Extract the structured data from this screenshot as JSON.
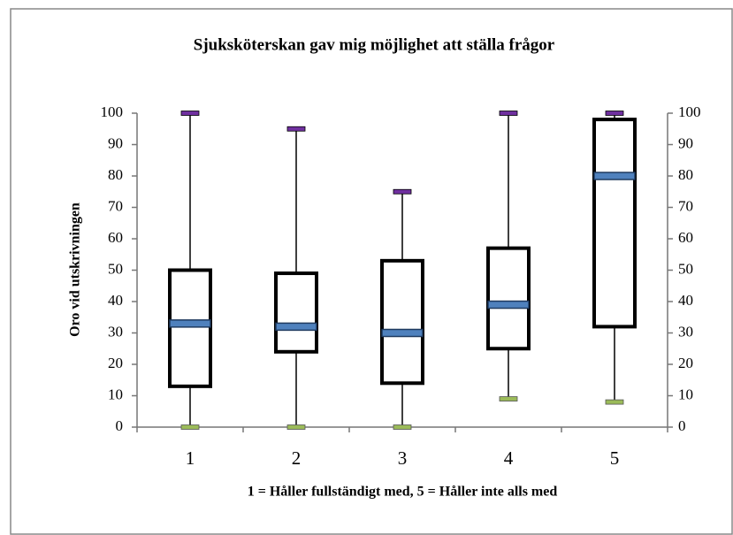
{
  "chart_data": {
    "type": "box",
    "title": "Sjuksköterskan gav mig möjlighet att ställa frågor",
    "x_label": "1 = Håller fullständigt med, 5 = Håller inte alls med",
    "y_label": "Oro vid utskrivningen",
    "categories": [
      "1",
      "2",
      "3",
      "4",
      "5"
    ],
    "min": [
      0,
      0,
      0,
      9,
      8
    ],
    "q1": [
      13,
      24,
      14,
      25,
      32
    ],
    "median": [
      33,
      32,
      30,
      39,
      80
    ],
    "q3": [
      50,
      49,
      53,
      57,
      98
    ],
    "max": [
      100,
      95,
      75,
      100,
      100
    ],
    "ylim": [
      0,
      100
    ],
    "yticks": [
      0,
      10,
      20,
      30,
      40,
      50,
      60,
      70,
      80,
      90,
      100
    ],
    "y2lim": [
      0,
      100
    ],
    "y2ticks": [
      0,
      10,
      20,
      30,
      40,
      50,
      60,
      70,
      80,
      90,
      100
    ],
    "box_color": "#000000",
    "median_color": "#4f81bd",
    "max_color": "#7030a0",
    "min_color": "#9bbb59"
  }
}
